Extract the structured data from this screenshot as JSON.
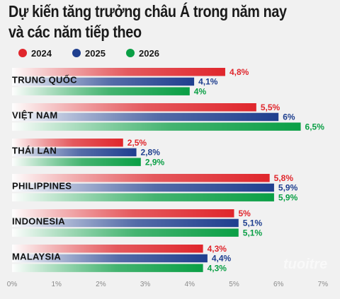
{
  "title_lines": [
    "Dự kiến tăng trưởng châu Á trong năm nay",
    "và các năm tiếp theo"
  ],
  "watermark": "tuoitre",
  "chart_data": {
    "type": "bar",
    "orientation": "horizontal",
    "title": "Dự kiến tăng trưởng châu Á trong năm nay và các năm tiếp theo",
    "categories": [
      "TRUNG QUỐC",
      "VIỆT NAM",
      "THÁI LAN",
      "PHILIPPINES",
      "INDONESIA",
      "MALAYSIA"
    ],
    "series": [
      {
        "name": "2024",
        "color": "#e0262c",
        "values": [
          4.8,
          5.5,
          2.5,
          5.8,
          5.0,
          4.3
        ],
        "labels": [
          "4,8%",
          "5,5%",
          "2,5%",
          "5,8%",
          "5%",
          "4,3%"
        ]
      },
      {
        "name": "2025",
        "color": "#1f3f8f",
        "values": [
          4.1,
          6.0,
          2.8,
          5.9,
          5.1,
          4.4
        ],
        "labels": [
          "4,1%",
          "6%",
          "2,8%",
          "5,9%",
          "5,1%",
          "4,4%"
        ]
      },
      {
        "name": "2026",
        "color": "#0a9f45",
        "values": [
          4.0,
          6.5,
          2.9,
          5.9,
          5.1,
          4.3
        ],
        "labels": [
          "4%",
          "6,5%",
          "2,9%",
          "5,9%",
          "5,1%",
          "4,3%"
        ]
      }
    ],
    "x_ticks": [
      "0%",
      "1%",
      "2%",
      "3%",
      "4%",
      "5%",
      "6%",
      "7%"
    ],
    "xlim": [
      0,
      7
    ],
    "legend_position": "top-left",
    "grid": false
  }
}
